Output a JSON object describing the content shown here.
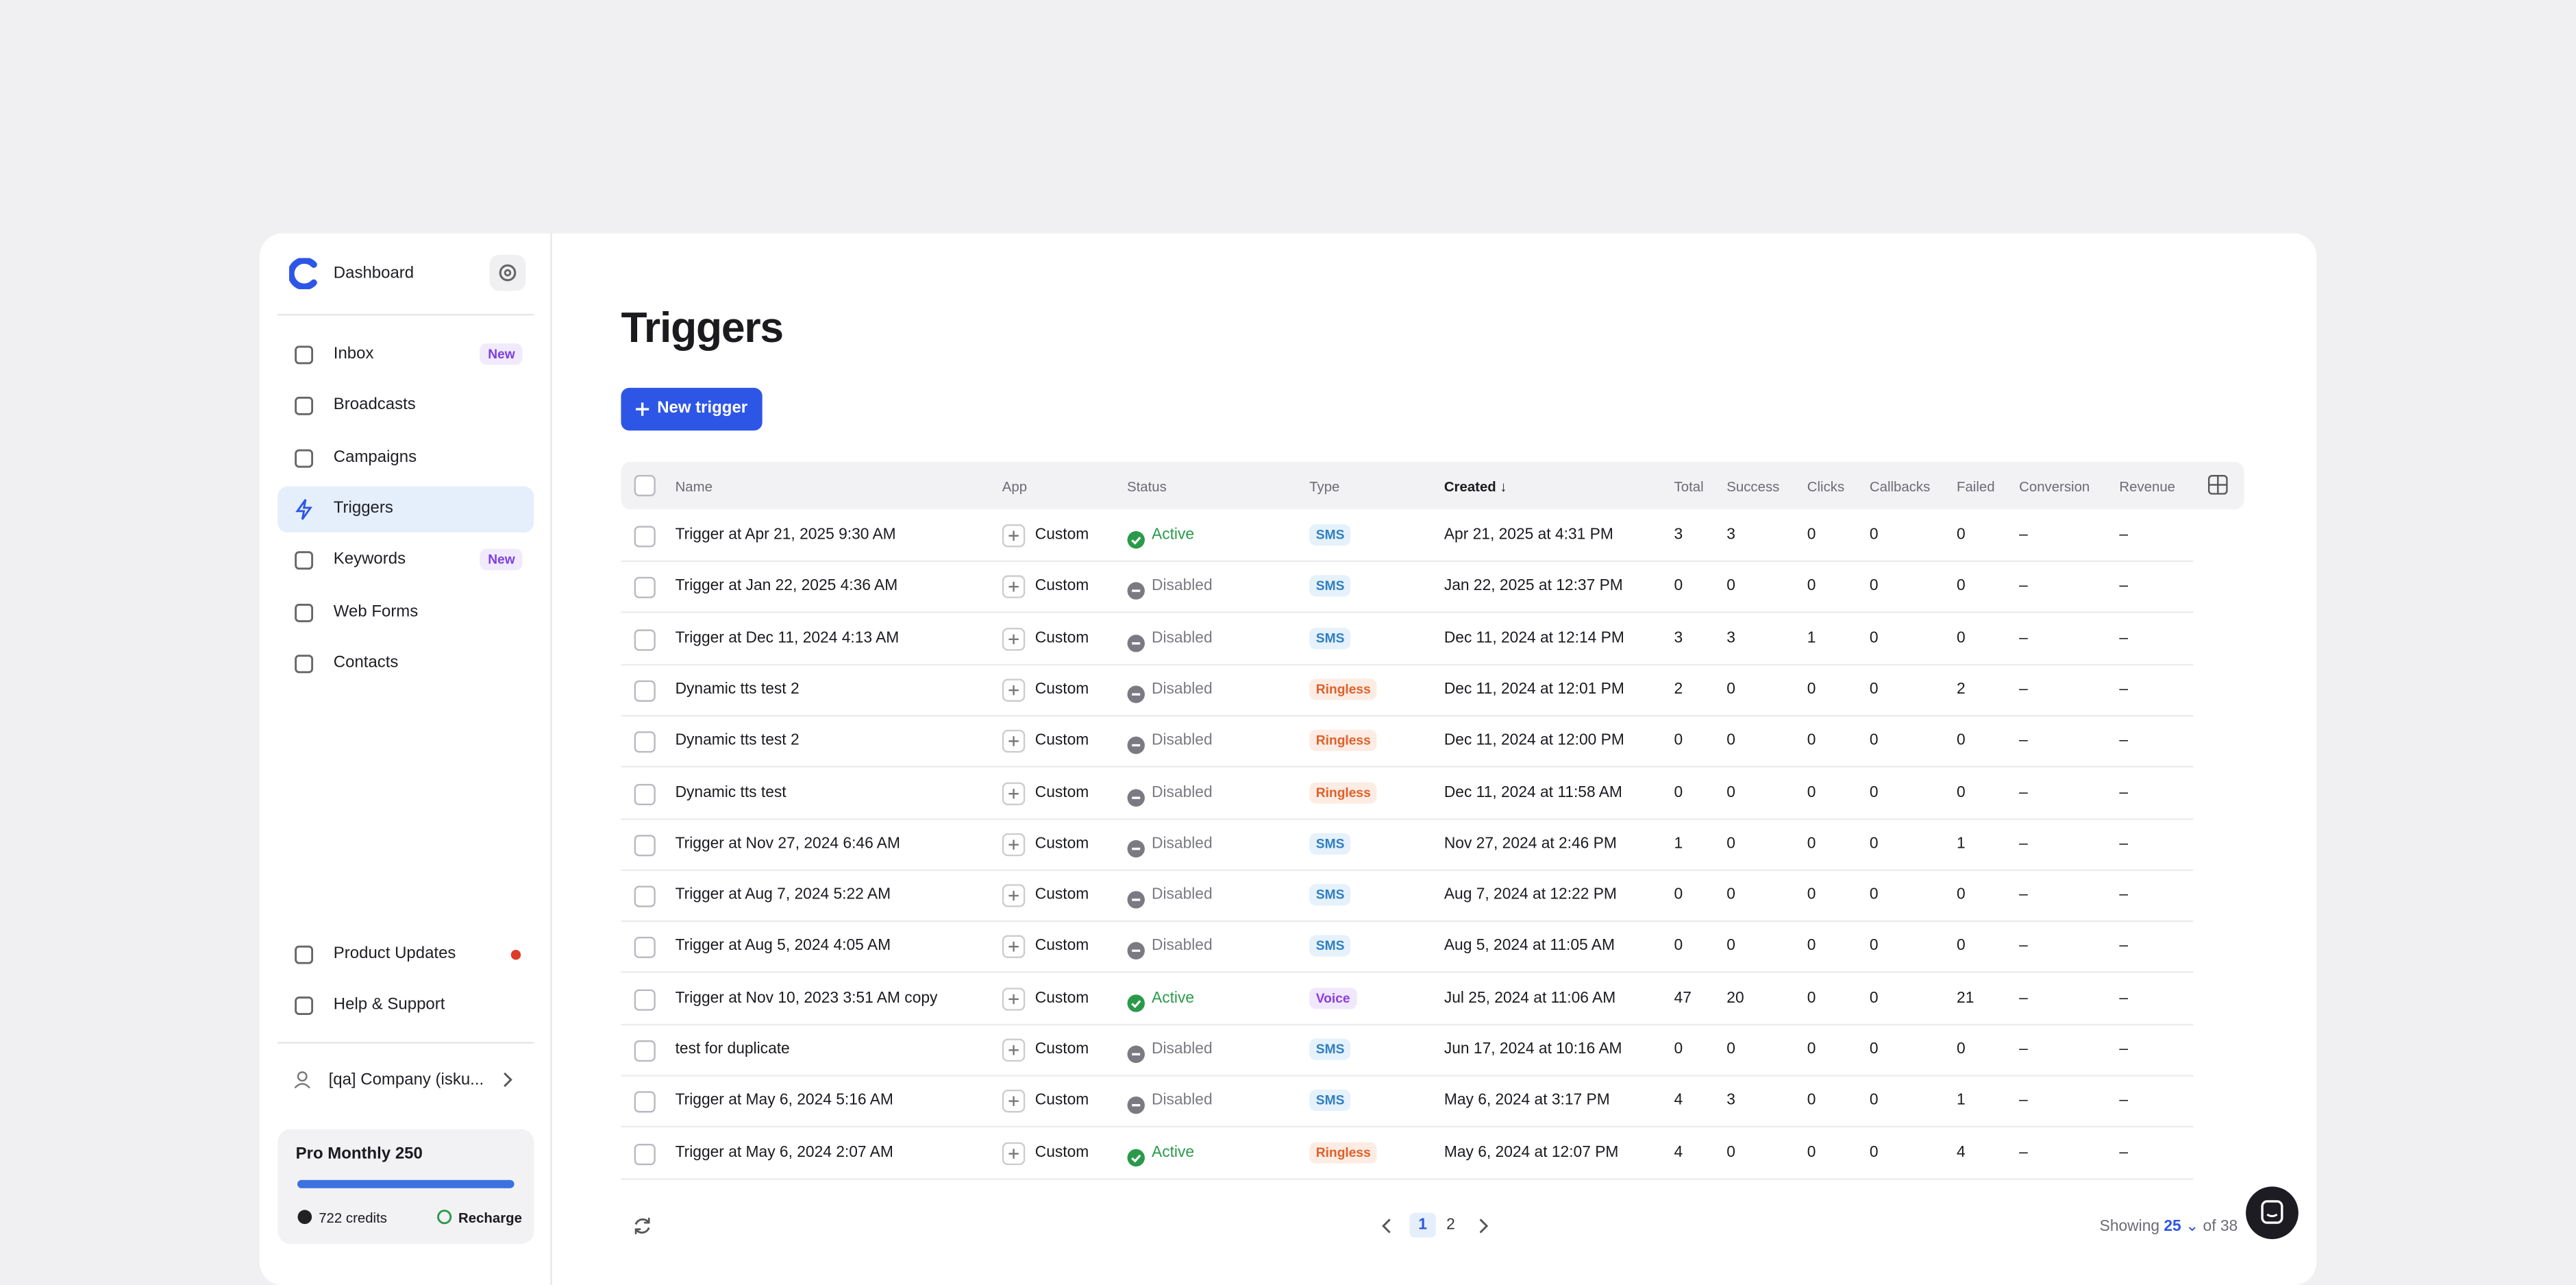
{
  "sidebar": {
    "brand": "Dashboard",
    "nav": [
      {
        "label": "Inbox",
        "badge": "New"
      },
      {
        "label": "Broadcasts"
      },
      {
        "label": "Campaigns"
      },
      {
        "label": "Triggers",
        "active": true
      },
      {
        "label": "Keywords",
        "badge": "New"
      },
      {
        "label": "Web Forms"
      },
      {
        "label": "Contacts"
      }
    ],
    "bottom": [
      {
        "label": "Product Updates",
        "dot": true
      },
      {
        "label": "Help & Support"
      }
    ],
    "company": "[qa] Company (isku...",
    "plan": {
      "name": "Pro Monthly 250",
      "credits": "722 credits",
      "action": "Recharge"
    }
  },
  "main": {
    "title": "Triggers",
    "button": "New trigger",
    "table": {
      "columns": [
        "Name",
        "App",
        "Status",
        "Type",
        "Created",
        "Total",
        "Success",
        "Clicks",
        "Callbacks",
        "Failed",
        "Conversion",
        "Revenue"
      ],
      "rows": [
        [
          "Trigger at Apr 21, 2025 9:30 AM",
          "Custom",
          "Active",
          "SMS",
          "Apr 21, 2025 at 4:31 PM",
          "3",
          "3",
          "0",
          "0",
          "0",
          "–",
          "–"
        ],
        [
          "Trigger at Jan 22, 2025 4:36 AM",
          "Custom",
          "Disabled",
          "SMS",
          "Jan 22, 2025 at 12:37 PM",
          "0",
          "0",
          "0",
          "0",
          "0",
          "–",
          "–"
        ],
        [
          "Trigger at Dec 11, 2024 4:13 AM",
          "Custom",
          "Disabled",
          "SMS",
          "Dec 11, 2024 at 12:14 PM",
          "3",
          "3",
          "1",
          "0",
          "0",
          "–",
          "–"
        ],
        [
          "Dynamic tts test 2",
          "Custom",
          "Disabled",
          "Ringless",
          "Dec 11, 2024 at 12:01 PM",
          "2",
          "0",
          "0",
          "0",
          "2",
          "–",
          "–"
        ],
        [
          "Dynamic tts test 2",
          "Custom",
          "Disabled",
          "Ringless",
          "Dec 11, 2024 at 12:00 PM",
          "0",
          "0",
          "0",
          "0",
          "0",
          "–",
          "–"
        ],
        [
          "Dynamic tts test",
          "Custom",
          "Disabled",
          "Ringless",
          "Dec 11, 2024 at 11:58 AM",
          "0",
          "0",
          "0",
          "0",
          "0",
          "–",
          "–"
        ],
        [
          "Trigger at Nov 27, 2024 6:46 AM",
          "Custom",
          "Disabled",
          "SMS",
          "Nov 27, 2024 at 2:46 PM",
          "1",
          "0",
          "0",
          "0",
          "1",
          "–",
          "–"
        ],
        [
          "Trigger at Aug 7, 2024 5:22 AM",
          "Custom",
          "Disabled",
          "SMS",
          "Aug 7, 2024 at 12:22 PM",
          "0",
          "0",
          "0",
          "0",
          "0",
          "–",
          "–"
        ],
        [
          "Trigger at Aug 5, 2024 4:05 AM",
          "Custom",
          "Disabled",
          "SMS",
          "Aug 5, 2024 at 11:05 AM",
          "0",
          "0",
          "0",
          "0",
          "0",
          "–",
          "–"
        ],
        [
          "Trigger at Nov 10, 2023 3:51 AM copy",
          "Custom",
          "Active",
          "Voice",
          "Jul 25, 2024 at 11:06 AM",
          "47",
          "20",
          "0",
          "0",
          "21",
          "–",
          "–"
        ],
        [
          "test for duplicate",
          "Custom",
          "Disabled",
          "SMS",
          "Jun 17, 2024 at 10:16 AM",
          "0",
          "0",
          "0",
          "0",
          "0",
          "–",
          "–"
        ],
        [
          "Trigger at May 6, 2024 5:16 AM",
          "Custom",
          "Disabled",
          "SMS",
          "May 6, 2024 at 3:17 PM",
          "4",
          "3",
          "0",
          "0",
          "1",
          "–",
          "–"
        ],
        [
          "Trigger at May 6, 2024 2:07 AM",
          "Custom",
          "Active",
          "Ringless",
          "May 6, 2024 at 12:07 PM",
          "4",
          "0",
          "0",
          "0",
          "4",
          "–",
          "–"
        ]
      ]
    },
    "pagination": {
      "pages": [
        "1",
        "2"
      ],
      "showing": "Showing",
      "per_page": "25",
      "total": "of 38"
    }
  }
}
